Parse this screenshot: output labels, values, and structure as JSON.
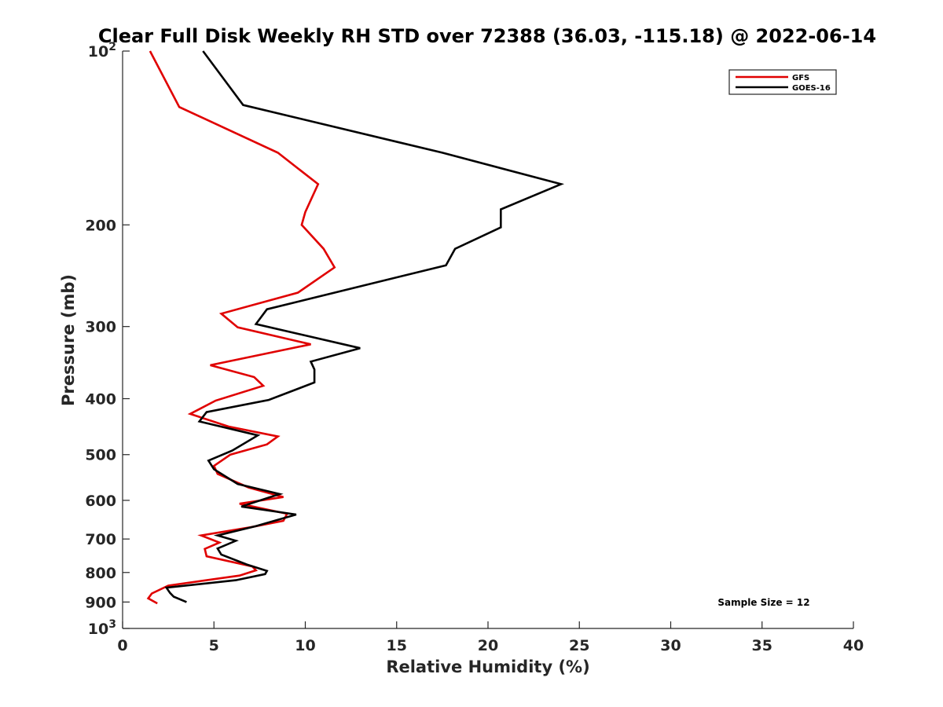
{
  "chart_data": {
    "type": "line",
    "title": "Clear Full Disk Weekly RH STD over 72388 (36.03, -115.18) @ 2022-06-14",
    "xlabel": "Relative Humidity (%)",
    "ylabel": "Pressure (mb)",
    "xlim": [
      0,
      40
    ],
    "ylim": [
      100,
      1000
    ],
    "yscale": "log",
    "yreversed": true,
    "grid": false,
    "legend_position": "top-right",
    "x_ticks": [
      0,
      5,
      10,
      15,
      20,
      25,
      30,
      35,
      40
    ],
    "x_tick_labels": [
      "0",
      "5",
      "10",
      "15",
      "20",
      "25",
      "30",
      "35",
      "40"
    ],
    "y_ticks": [
      100,
      200,
      300,
      400,
      500,
      600,
      700,
      800,
      900,
      1000
    ],
    "y_tick_labels": [
      {
        "base": "10",
        "exp": "2"
      },
      {
        "base": "200",
        "exp": ""
      },
      {
        "base": "300",
        "exp": ""
      },
      {
        "base": "400",
        "exp": ""
      },
      {
        "base": "500",
        "exp": ""
      },
      {
        "base": "600",
        "exp": ""
      },
      {
        "base": "700",
        "exp": ""
      },
      {
        "base": "800",
        "exp": ""
      },
      {
        "base": "900",
        "exp": ""
      },
      {
        "base": "10",
        "exp": "3"
      }
    ],
    "series": [
      {
        "name": "GFS",
        "color": "#e00000",
        "points": [
          [
            1.5,
            100
          ],
          [
            3.1,
            125
          ],
          [
            8.5,
            150
          ],
          [
            10.7,
            170
          ],
          [
            10.0,
            190
          ],
          [
            9.8,
            200
          ],
          [
            11.0,
            220
          ],
          [
            11.6,
            237
          ],
          [
            9.6,
            262
          ],
          [
            5.4,
            285
          ],
          [
            6.3,
            301
          ],
          [
            10.3,
            322
          ],
          [
            4.8,
            350
          ],
          [
            7.2,
            367
          ],
          [
            7.7,
            380
          ],
          [
            5.1,
            403
          ],
          [
            3.7,
            425
          ],
          [
            5.8,
            447
          ],
          [
            8.5,
            465
          ],
          [
            7.9,
            480
          ],
          [
            5.9,
            500
          ],
          [
            5.0,
            523
          ],
          [
            5.2,
            540
          ],
          [
            6.9,
            570
          ],
          [
            8.8,
            592
          ],
          [
            6.4,
            608
          ],
          [
            9.0,
            633
          ],
          [
            8.8,
            651
          ],
          [
            7.0,
            668
          ],
          [
            4.3,
            690
          ],
          [
            5.3,
            710
          ],
          [
            4.5,
            728
          ],
          [
            4.6,
            750
          ],
          [
            7.1,
            781
          ],
          [
            7.3,
            793
          ],
          [
            6.4,
            810
          ],
          [
            2.5,
            843
          ],
          [
            1.6,
            870
          ],
          [
            1.4,
            887
          ],
          [
            1.9,
            905
          ]
        ]
      },
      {
        "name": "GOES-16",
        "color": "#000000",
        "points": [
          [
            4.4,
            100
          ],
          [
            6.6,
            124
          ],
          [
            17.5,
            150
          ],
          [
            24.0,
            170
          ],
          [
            20.7,
            188
          ],
          [
            20.7,
            202
          ],
          [
            18.2,
            220
          ],
          [
            17.7,
            235
          ],
          [
            7.9,
            280
          ],
          [
            7.3,
            297
          ],
          [
            13.0,
            327
          ],
          [
            10.3,
            345
          ],
          [
            10.5,
            356
          ],
          [
            10.5,
            375
          ],
          [
            8.0,
            402
          ],
          [
            4.6,
            422
          ],
          [
            4.2,
            438
          ],
          [
            7.4,
            463
          ],
          [
            6.0,
            492
          ],
          [
            4.7,
            512
          ],
          [
            5.0,
            530
          ],
          [
            6.3,
            562
          ],
          [
            8.6,
            585
          ],
          [
            6.5,
            615
          ],
          [
            9.5,
            635
          ],
          [
            7.3,
            665
          ],
          [
            5.2,
            690
          ],
          [
            6.2,
            705
          ],
          [
            5.2,
            727
          ],
          [
            5.4,
            745
          ],
          [
            6.8,
            775
          ],
          [
            7.9,
            795
          ],
          [
            7.8,
            805
          ],
          [
            6.2,
            825
          ],
          [
            2.4,
            850
          ],
          [
            2.6,
            868
          ],
          [
            2.8,
            881
          ],
          [
            3.5,
            900
          ]
        ]
      }
    ],
    "annotation": "Sample Size = 12"
  }
}
